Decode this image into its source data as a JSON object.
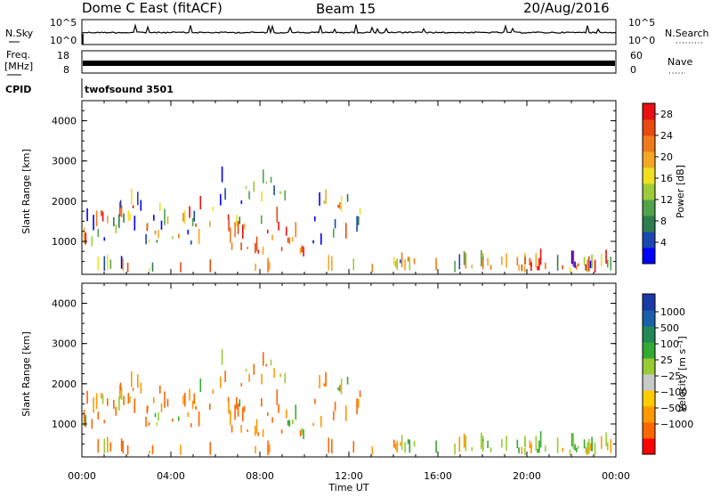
{
  "header": {
    "station": "Dome C East (fitACF)",
    "beam": "Beam 15",
    "date": "20/Aug/2016"
  },
  "top_panels": {
    "nsky_label": "N.Sky",
    "nsky_ticks": [
      "10^5",
      "10^0"
    ],
    "nsearch_label": "N.Search",
    "nsearch_ticks": [
      "10^5",
      "10^0"
    ],
    "freq_label_1": "Freq.",
    "freq_label_2": "[MHz]",
    "freq_ticks": [
      "18",
      "8"
    ],
    "nave_label": "Nave",
    "nave_ticks": [
      "60",
      "0"
    ],
    "cpid_label": "CPID",
    "cpid_value": "twofsound 3501"
  },
  "colors": {
    "power_scale": [
      "#0000ff",
      "#1a47b0",
      "#2e7d4f",
      "#4fa34a",
      "#9ccc3a",
      "#f0e020",
      "#f5a623",
      "#f07a1a",
      "#e84a10",
      "#e81010"
    ],
    "velocity_scale": [
      "#ff0000",
      "#ff6600",
      "#ff9900",
      "#ffcc00",
      "#c8c8c8",
      "#99cc33",
      "#33aa33",
      "#228855",
      "#1a5faa",
      "#1a3aa8"
    ]
  },
  "chart_data": [
    {
      "type": "heatmap",
      "title": "",
      "ylabel": "Slant Range [km]",
      "xlabel": "",
      "xlim": [
        0,
        24
      ],
      "ylim": [
        180,
        4500
      ],
      "y_ticks": [
        "1000",
        "2000",
        "3000",
        "4000"
      ],
      "x_ticks": [
        "00:00",
        "04:00",
        "08:00",
        "12:00",
        "16:00",
        "20:00",
        "00:00"
      ],
      "colorbar_label": "Power [dB]",
      "colorbar_ticks": [
        "4",
        "8",
        "12",
        "16",
        "20",
        "24",
        "28"
      ],
      "colorbar_range": [
        0,
        30
      ]
    },
    {
      "type": "heatmap",
      "title": "",
      "ylabel": "Slant Range [km]",
      "xlabel": "Time UT",
      "xlim": [
        0,
        24
      ],
      "ylim": [
        180,
        4500
      ],
      "y_ticks": [
        "1000",
        "2000",
        "3000",
        "4000"
      ],
      "x_ticks": [
        "00:00",
        "04:00",
        "08:00",
        "12:00",
        "16:00",
        "20:00",
        "00:00"
      ],
      "colorbar_label": "Velocity [m s⁻¹]",
      "colorbar_ticks": [
        "1000",
        "500",
        "100",
        "25",
        "−25",
        "−100",
        "−500",
        "−1000"
      ],
      "colorbar_range": [
        -1000,
        1000
      ]
    }
  ]
}
